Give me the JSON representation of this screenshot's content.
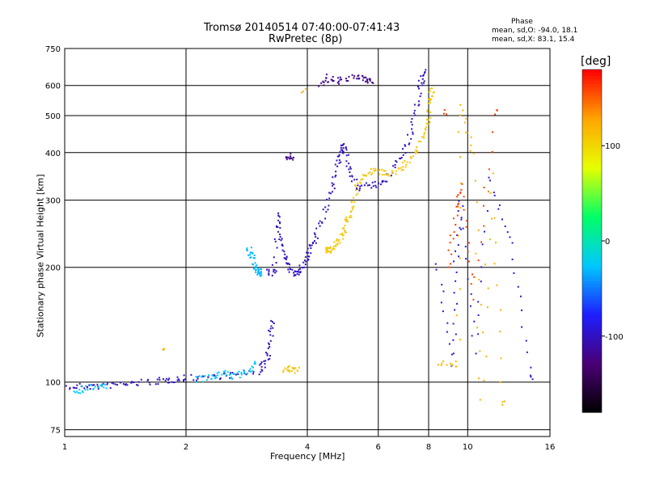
{
  "chart_data": {
    "type": "scatter",
    "title": "Tromsø 20140514 07:40:00-07:41:43",
    "subtitle": "RwPretec (8p)",
    "xlabel": "Frequency [MHz]",
    "ylabel": "Stationary phase Virtual Height [km]",
    "x_scale": "log",
    "y_scale": "log",
    "xlim": [
      1,
      16
    ],
    "ylim": [
      72,
      750
    ],
    "x_ticks": [
      1,
      2,
      4,
      6,
      8,
      10,
      16
    ],
    "y_ticks": [
      75,
      100,
      200,
      300,
      400,
      500,
      600,
      750
    ],
    "grid": true,
    "stats": {
      "heading": "Phase",
      "line_o": "mean, sd,O: -94.0, 18.1",
      "line_x": "mean, sd,X: 83.1, 15.4"
    },
    "colorbar": {
      "label": "[deg]",
      "range": [
        -180,
        180
      ],
      "ticks": [
        100,
        0,
        -100
      ],
      "colors": [
        "#000000",
        "#4a0075",
        "#1e1eff",
        "#00c8ff",
        "#00ff66",
        "#e6ff00",
        "#ffa500",
        "#ff0000"
      ]
    },
    "series": [
      {
        "phase": -100,
        "points": [
          [
            1.0,
            97
          ],
          [
            1.1,
            98
          ],
          [
            1.2,
            98
          ],
          [
            1.35,
            99
          ],
          [
            1.5,
            100
          ],
          [
            1.7,
            101
          ],
          [
            1.85,
            102
          ],
          [
            2.0,
            103
          ],
          [
            2.3,
            104
          ],
          [
            2.6,
            105
          ],
          [
            3.0,
            107
          ],
          [
            3.15,
            113
          ],
          [
            3.22,
            125
          ],
          [
            3.25,
            145
          ]
        ]
      },
      {
        "phase": -25,
        "points": [
          [
            1.05,
            95
          ],
          [
            1.12,
            97
          ],
          [
            1.25,
            98
          ],
          [
            2.1,
            102
          ],
          [
            2.3,
            103
          ],
          [
            2.45,
            106
          ],
          [
            2.6,
            104
          ],
          [
            2.8,
            106
          ],
          [
            2.95,
            112
          ]
        ]
      },
      {
        "phase": -100,
        "points": [
          [
            3.2,
            195
          ],
          [
            3.3,
            194
          ],
          [
            3.35,
            280
          ],
          [
            3.4,
            245
          ],
          [
            3.5,
            215
          ],
          [
            3.6,
            200
          ],
          [
            3.7,
            193
          ],
          [
            3.8,
            197
          ],
          [
            3.95,
            210
          ],
          [
            4.05,
            225
          ],
          [
            4.2,
            245
          ],
          [
            4.4,
            280
          ],
          [
            4.6,
            330
          ],
          [
            4.75,
            380
          ],
          [
            4.85,
            410
          ],
          [
            4.95,
            420
          ],
          [
            5.05,
            360
          ],
          [
            5.3,
            325
          ],
          [
            5.8,
            330
          ],
          [
            6.2,
            335
          ],
          [
            6.7,
            380
          ],
          [
            7.1,
            430
          ],
          [
            7.4,
            510
          ],
          [
            7.6,
            600
          ],
          [
            7.75,
            650
          ]
        ]
      },
      {
        "phase": -30,
        "points": [
          [
            2.85,
            225
          ],
          [
            2.9,
            215
          ],
          [
            2.95,
            200
          ],
          [
            3.0,
            196
          ],
          [
            3.05,
            194
          ]
        ]
      },
      {
        "phase": 110,
        "points": [
          [
            4.4,
            225
          ],
          [
            4.5,
            222
          ],
          [
            4.6,
            225
          ],
          [
            4.75,
            235
          ],
          [
            4.9,
            250
          ],
          [
            5.0,
            265
          ],
          [
            5.1,
            285
          ],
          [
            5.3,
            330
          ],
          [
            5.6,
            355
          ],
          [
            5.9,
            360
          ],
          [
            6.3,
            355
          ],
          [
            6.8,
            365
          ],
          [
            7.2,
            385
          ],
          [
            7.6,
            430
          ],
          [
            7.9,
            480
          ],
          [
            8.05,
            540
          ],
          [
            8.1,
            590
          ],
          [
            3.5,
            108
          ],
          [
            3.6,
            109
          ],
          [
            3.75,
            108
          ]
        ]
      },
      {
        "phase": -120,
        "points": [
          [
            4.3,
            610
          ],
          [
            4.5,
            632
          ],
          [
            4.8,
            620
          ],
          [
            5.3,
            633
          ],
          [
            5.55,
            628
          ],
          [
            5.75,
            618
          ],
          [
            3.65,
            395
          ],
          [
            3.55,
            385
          ]
        ]
      },
      {
        "phase": -90,
        "points": [
          [
            8.3,
            208
          ],
          [
            9.2,
            112
          ],
          [
            9.3,
            210
          ],
          [
            9.6,
            300
          ],
          [
            10.4,
            120
          ],
          [
            11.2,
            350
          ],
          [
            12.8,
            230
          ],
          [
            14.3,
            103
          ]
        ]
      },
      {
        "phase": 120,
        "points": [
          [
            8.5,
            113
          ],
          [
            9.4,
            112
          ],
          [
            9.5,
            535
          ],
          [
            10.3,
            395
          ],
          [
            10.8,
            90
          ],
          [
            11.4,
            360
          ],
          [
            12.2,
            88
          ],
          [
            1.75,
            124
          ],
          [
            3.9,
            588
          ]
        ]
      },
      {
        "phase": 160,
        "points": [
          [
            8.9,
            200
          ],
          [
            9.3,
            280
          ],
          [
            9.7,
            330
          ],
          [
            10.2,
            168
          ],
          [
            11.7,
            510
          ],
          [
            8.7,
            515
          ]
        ]
      }
    ]
  }
}
